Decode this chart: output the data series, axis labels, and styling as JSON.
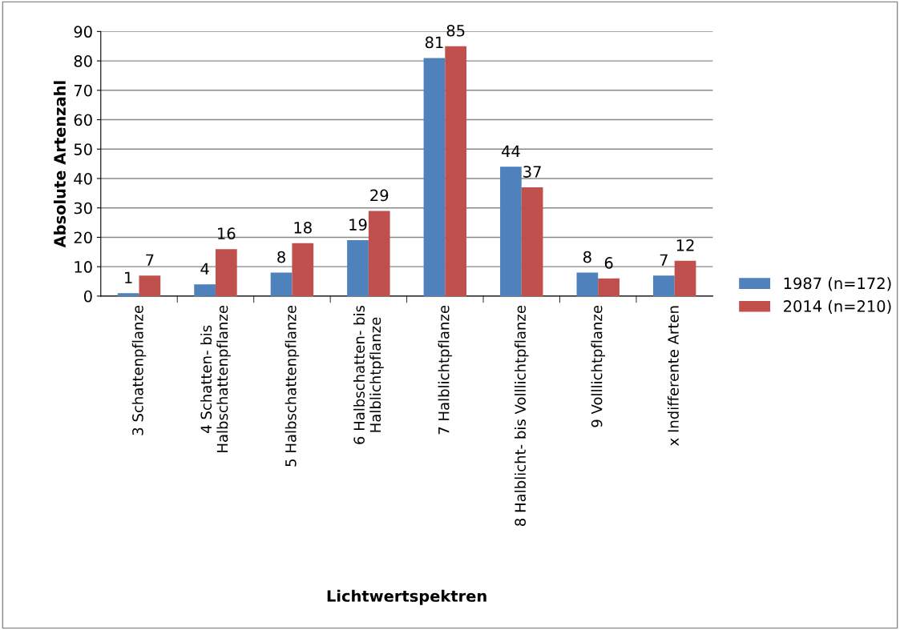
{
  "chart_data": {
    "type": "bar",
    "xlabel": "Lichtwertspektren",
    "ylabel": "Absolute Artenzahl",
    "categories": [
      "3 Schattenpflanze",
      "4 Schatten- bis\nHalbschattenpflanze",
      "5 Halbschattenpflanze",
      "6 Halbschatten- bis\nHalblichtpflanze",
      "7 Halblichtpflanze",
      "8 Halblicht- bis Volllichtpflanze",
      "9 Volllichtpflanze",
      "x Indifferente Arten"
    ],
    "series": [
      {
        "name": "1987 (n=172)",
        "color": "#4f81bd",
        "values": [
          1,
          4,
          8,
          19,
          81,
          44,
          8,
          7
        ]
      },
      {
        "name": "2014 (n=210)",
        "color": "#c0504d",
        "values": [
          7,
          16,
          18,
          29,
          85,
          37,
          6,
          12
        ]
      }
    ],
    "ylim": [
      0,
      90
    ],
    "yticks": [
      0,
      10,
      20,
      30,
      40,
      50,
      60,
      70,
      80,
      90
    ],
    "grid": "y",
    "legend": "right",
    "data_labels": true
  }
}
